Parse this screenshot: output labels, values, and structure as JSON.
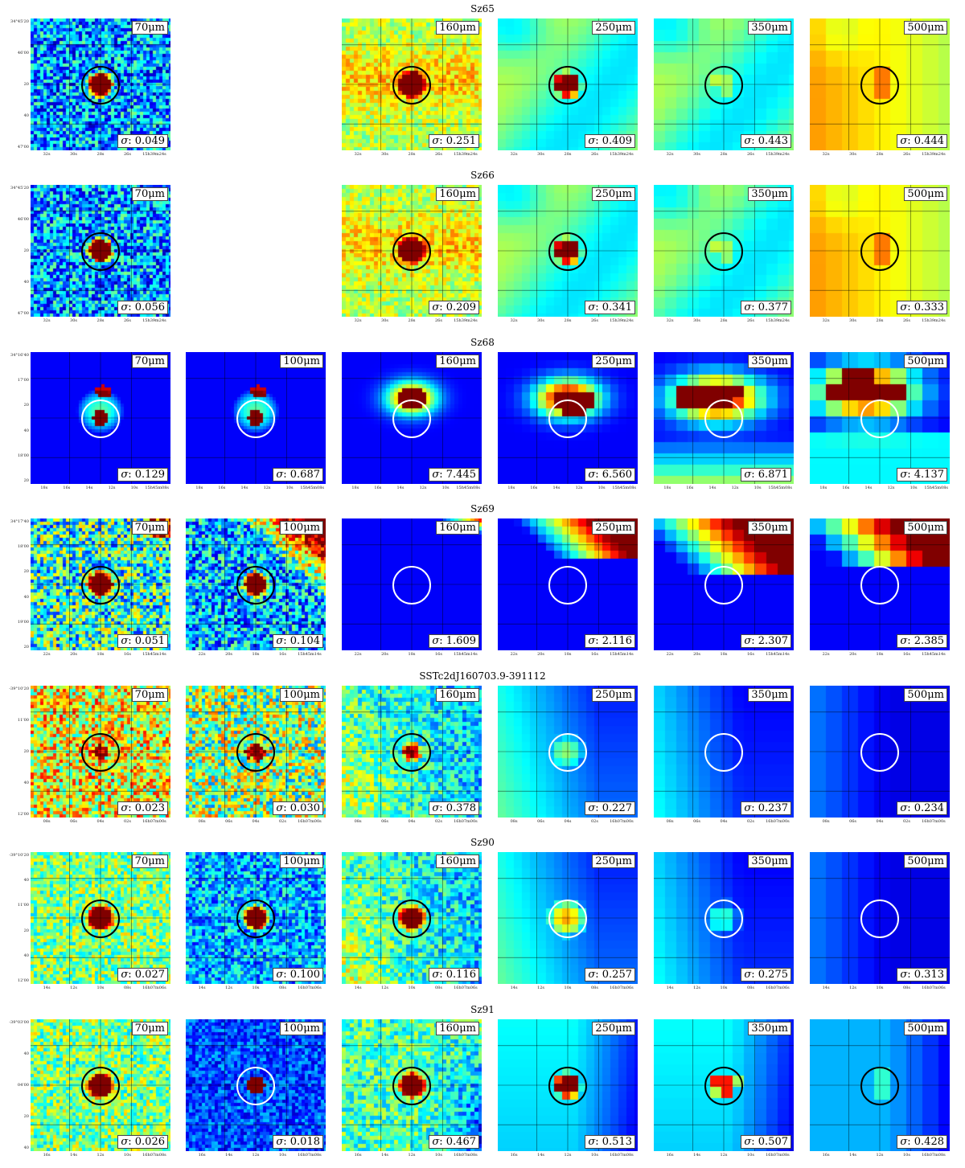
{
  "rows": [
    {
      "title": "Sz65",
      "circle": "black",
      "panels": [
        {
          "col": 0,
          "band": "70",
          "sigma": "0.049",
          "style": "noise",
          "src": "blob",
          "xt": [
            "32s",
            "30s",
            "28s",
            "26s",
            "15h39m24s"
          ],
          "yt": [
            "34°45'20",
            "46'00",
            "20",
            "40",
            "47'00"
          ]
        },
        {
          "col": 2,
          "band": "160",
          "sigma": "0.251",
          "style": "warm",
          "src": "blob",
          "xt": [
            "32s",
            "30s",
            "28s",
            "26s",
            "15h39m24s"
          ]
        },
        {
          "col": 3,
          "band": "250",
          "sigma": "0.409",
          "style": "smooth",
          "src": "blob",
          "xt": [
            "32s",
            "30s",
            "28s",
            "26s",
            "15h39m24s"
          ]
        },
        {
          "col": 4,
          "band": "350",
          "sigma": "0.443",
          "style": "smooth",
          "src": "faint",
          "xt": [
            "32s",
            "30s",
            "28s",
            "26s",
            "15h39m24s"
          ]
        },
        {
          "col": 5,
          "band": "500",
          "sigma": "0.444",
          "style": "warmleft",
          "src": "faint",
          "xt": [
            "32s",
            "30s",
            "28s",
            "26s",
            "15h39m24s"
          ]
        }
      ]
    },
    {
      "title": "Sz66",
      "circle": "black",
      "panels": [
        {
          "col": 0,
          "band": "70",
          "sigma": "0.056",
          "style": "noise",
          "src": "blob",
          "xt": [
            "32s",
            "30s",
            "28s",
            "26s",
            "15h39m24s"
          ],
          "yt": [
            "34°45'20",
            "46'00",
            "20",
            "40",
            "47'00"
          ]
        },
        {
          "col": 2,
          "band": "160",
          "sigma": "0.209",
          "style": "warm",
          "src": "blob",
          "xt": [
            "32s",
            "30s",
            "28s",
            "26s",
            "15h39m24s"
          ]
        },
        {
          "col": 3,
          "band": "250",
          "sigma": "0.341",
          "style": "smooth",
          "src": "blob",
          "xt": [
            "32s",
            "30s",
            "28s",
            "26s",
            "15h39m24s"
          ]
        },
        {
          "col": 4,
          "band": "350",
          "sigma": "0.377",
          "style": "smooth",
          "src": "faint",
          "xt": [
            "32s",
            "30s",
            "28s",
            "26s",
            "15h39m24s"
          ]
        },
        {
          "col": 5,
          "band": "500",
          "sigma": "0.333",
          "style": "warmleft",
          "src": "faint",
          "xt": [
            "32s",
            "30s",
            "28s",
            "26s",
            "15h39m24s"
          ]
        }
      ]
    },
    {
      "title": "Sz68",
      "circle": "white",
      "panels": [
        {
          "col": 0,
          "band": "70",
          "sigma": "0.129",
          "style": "dark",
          "src": "arc1",
          "xt": [
            "18s",
            "16s",
            "14s",
            "12s",
            "10s",
            "15h45m08s"
          ],
          "yt": [
            "34°16'40",
            "17'00",
            "20",
            "40",
            "18'00",
            "20"
          ]
        },
        {
          "col": 1,
          "band": "100",
          "sigma": "0.687",
          "style": "dark",
          "src": "arc1",
          "xt": [
            "18s",
            "16s",
            "14s",
            "12s",
            "10s",
            "15h45m08s"
          ]
        },
        {
          "col": 2,
          "band": "160",
          "sigma": "7.445",
          "style": "dark",
          "src": "arc2",
          "xt": [
            "18s",
            "16s",
            "14s",
            "12s",
            "10s",
            "15h45m08s"
          ]
        },
        {
          "col": 3,
          "band": "250",
          "sigma": "6.560",
          "style": "dark",
          "src": "arc3",
          "xt": [
            "18s",
            "16s",
            "14s",
            "12s",
            "10s",
            "15h45m08s"
          ]
        },
        {
          "col": 4,
          "band": "350",
          "sigma": "6.871",
          "style": "dark",
          "src": "arc4",
          "xt": [
            "18s",
            "16s",
            "14s",
            "12s",
            "10s",
            "15h45m08s"
          ]
        },
        {
          "col": 5,
          "band": "500",
          "sigma": "4.137",
          "style": "dark",
          "src": "arc5",
          "xt": [
            "18s",
            "16s",
            "14s",
            "12s",
            "10s",
            "15h45m08s"
          ]
        }
      ]
    },
    {
      "title": "Sz69",
      "circle": "mixed",
      "panels": [
        {
          "col": 0,
          "band": "70",
          "sigma": "0.051",
          "style": "noisehot",
          "src": "blob",
          "xt": [
            "22s",
            "20s",
            "18s",
            "16s",
            "15h45m14s"
          ],
          "yt": [
            "34°17'40",
            "18'00",
            "20",
            "40",
            "19'00",
            "20"
          ]
        },
        {
          "col": 1,
          "band": "100",
          "sigma": "0.104",
          "style": "noisecorner",
          "src": "blob",
          "xt": [
            "22s",
            "20s",
            "18s",
            "16s",
            "15h45m14s"
          ]
        },
        {
          "col": 2,
          "band": "160",
          "sigma": "1.609",
          "style": "corner",
          "src": "none",
          "xt": [
            "22s",
            "20s",
            "18s",
            "16s",
            "15h45m14s"
          ]
        },
        {
          "col": 3,
          "band": "250",
          "sigma": "2.116",
          "style": "corner2",
          "src": "none",
          "xt": [
            "22s",
            "20s",
            "18s",
            "16s",
            "15h45m14s"
          ]
        },
        {
          "col": 4,
          "band": "350",
          "sigma": "2.307",
          "style": "corner3",
          "src": "none",
          "xt": [
            "22s",
            "20s",
            "18s",
            "16s",
            "15h45m14s"
          ]
        },
        {
          "col": 5,
          "band": "500",
          "sigma": "2.385",
          "style": "corner3",
          "src": "none",
          "xt": [
            "22s",
            "20s",
            "18s",
            "16s",
            "15h45m14s"
          ]
        }
      ]
    },
    {
      "title": "SSTc2dJ160703.9-391112",
      "circle": "mixed",
      "panels": [
        {
          "col": 0,
          "band": "70",
          "sigma": "0.023",
          "style": "noisered",
          "src": "faintred",
          "xt": [
            "08s",
            "06s",
            "04s",
            "02s",
            "16h07m00s"
          ],
          "yt": [
            "-39°10'20",
            "11'00",
            "20",
            "40",
            "12'00"
          ]
        },
        {
          "col": 1,
          "band": "100",
          "sigma": "0.030",
          "style": "noisewarm",
          "src": "smallred",
          "xt": [
            "08s",
            "06s",
            "04s",
            "02s",
            "16h07m00s"
          ]
        },
        {
          "col": 2,
          "band": "160",
          "sigma": "0.378",
          "style": "mixedbl",
          "src": "smallred",
          "xt": [
            "08s",
            "06s",
            "04s",
            "02s",
            "16h07m00s"
          ]
        },
        {
          "col": 3,
          "band": "250",
          "sigma": "0.227",
          "style": "blueleft",
          "src": "glow",
          "xt": [
            "08s",
            "06s",
            "04s",
            "02s",
            "16h07m00s"
          ]
        },
        {
          "col": 4,
          "band": "350",
          "sigma": "0.237",
          "style": "blueleft2",
          "src": "none",
          "xt": [
            "08s",
            "06s",
            "04s",
            "02s",
            "16h07m00s"
          ]
        },
        {
          "col": 5,
          "band": "500",
          "sigma": "0.234",
          "style": "blueleft3",
          "src": "none",
          "xt": [
            "08s",
            "06s",
            "04s",
            "02s",
            "16h07m00s"
          ]
        }
      ]
    },
    {
      "title": "Sz90",
      "circle": "mixed",
      "panels": [
        {
          "col": 0,
          "band": "70",
          "sigma": "0.027",
          "style": "noisegreen",
          "src": "blob",
          "xt": [
            "14s",
            "12s",
            "10s",
            "08s",
            "16h07m06s"
          ],
          "yt": [
            "-39°10'20",
            "40",
            "11'00",
            "20",
            "40",
            "12'00"
          ]
        },
        {
          "col": 1,
          "band": "100",
          "sigma": "0.100",
          "style": "noiseblue",
          "src": "blob",
          "xt": [
            "14s",
            "12s",
            "10s",
            "08s",
            "16h07m06s"
          ]
        },
        {
          "col": 2,
          "band": "160",
          "sigma": "0.116",
          "style": "mixedbl",
          "src": "blob",
          "xt": [
            "14s",
            "12s",
            "10s",
            "08s",
            "16h07m06s"
          ]
        },
        {
          "col": 3,
          "band": "250",
          "sigma": "0.257",
          "style": "blueleft",
          "src": "glowy",
          "xt": [
            "14s",
            "12s",
            "10s",
            "08s",
            "16h07m06s"
          ]
        },
        {
          "col": 4,
          "band": "350",
          "sigma": "0.275",
          "style": "blueleft2",
          "src": "glow",
          "xt": [
            "14s",
            "12s",
            "10s",
            "08s",
            "16h07m06s"
          ]
        },
        {
          "col": 5,
          "band": "500",
          "sigma": "0.313",
          "style": "blueleft3",
          "src": "none",
          "xt": [
            "14s",
            "12s",
            "10s",
            "08s",
            "16h07m06s"
          ]
        }
      ]
    },
    {
      "title": "Sz91",
      "circle": "mixed",
      "panels": [
        {
          "col": 0,
          "band": "70",
          "sigma": "0.026",
          "style": "noisegreen",
          "src": "blob",
          "xt": [
            "16s",
            "14s",
            "12s",
            "10s",
            "16h07m08s"
          ],
          "yt": [
            "-39°03'00",
            "40",
            "04'00",
            "20",
            "40"
          ]
        },
        {
          "col": 1,
          "band": "100",
          "sigma": "0.018",
          "style": "noiseblue2",
          "src": "smallblob",
          "xt": [
            "16s",
            "14s",
            "12s",
            "10s",
            "16h07m08s"
          ]
        },
        {
          "col": 2,
          "band": "160",
          "sigma": "0.467",
          "style": "mixedright",
          "src": "blob",
          "xt": [
            "16s",
            "14s",
            "12s",
            "10s",
            "16h07m08s"
          ]
        },
        {
          "col": 3,
          "band": "250",
          "sigma": "0.513",
          "style": "cyanright",
          "src": "blob",
          "xt": [
            "16s",
            "14s",
            "12s",
            "10s",
            "16h07m08s"
          ]
        },
        {
          "col": 4,
          "band": "350",
          "sigma": "0.507",
          "style": "cyanright",
          "src": "blobsoft",
          "xt": [
            "16s",
            "14s",
            "12s",
            "10s",
            "16h07m08s"
          ]
        },
        {
          "col": 5,
          "band": "500",
          "sigma": "0.428",
          "style": "cyanright2",
          "src": "faint",
          "xt": [
            "16s",
            "14s",
            "12s",
            "10s",
            "16h07m08s"
          ]
        }
      ]
    }
  ],
  "unit": "μm",
  "sigma_symbol": "σ",
  "colormap": "jet",
  "colors": {
    "circle_black": "#000000",
    "circle_white": "#ffffff",
    "grid": "#000000"
  }
}
